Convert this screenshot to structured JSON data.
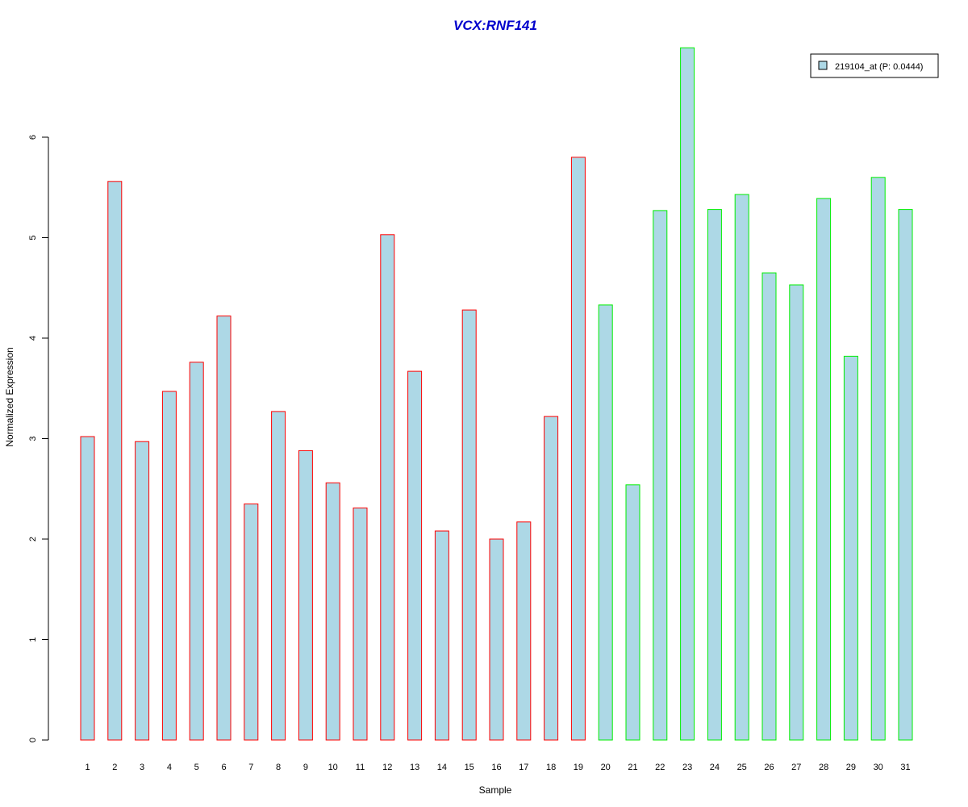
{
  "chart_data": {
    "type": "bar",
    "title": "VCX:RNF141",
    "xlabel": "Sample",
    "ylabel": "Normalized Expression",
    "categories": [
      "1",
      "2",
      "3",
      "4",
      "5",
      "6",
      "7",
      "8",
      "9",
      "10",
      "11",
      "12",
      "13",
      "14",
      "15",
      "16",
      "17",
      "18",
      "19",
      "20",
      "21",
      "22",
      "23",
      "24",
      "25",
      "26",
      "27",
      "28",
      "29",
      "30",
      "31"
    ],
    "series": [
      {
        "name": "219104_at (P: 0.0444)",
        "values": [
          3.02,
          5.56,
          2.97,
          3.47,
          3.76,
          4.22,
          2.35,
          3.27,
          2.88,
          2.56,
          2.31,
          5.03,
          3.67,
          2.08,
          4.28,
          2.0,
          2.17,
          3.22,
          5.8,
          4.33,
          2.54,
          5.27,
          6.89,
          5.28,
          5.43,
          4.65,
          4.53,
          5.39,
          3.82,
          5.6,
          5.28
        ]
      }
    ],
    "groups": [
      {
        "range": [
          1,
          19
        ],
        "edge_color": "#ff0000"
      },
      {
        "range": [
          20,
          31
        ],
        "edge_color": "#00ee00"
      }
    ],
    "y_ticks": [
      "0",
      "1",
      "2",
      "3",
      "4",
      "5",
      "6"
    ],
    "ylim": [
      0,
      6.9
    ],
    "grid": false,
    "legend_position": "top-right",
    "bar_fill": "#add8e6",
    "title_color": "#0000cc"
  }
}
